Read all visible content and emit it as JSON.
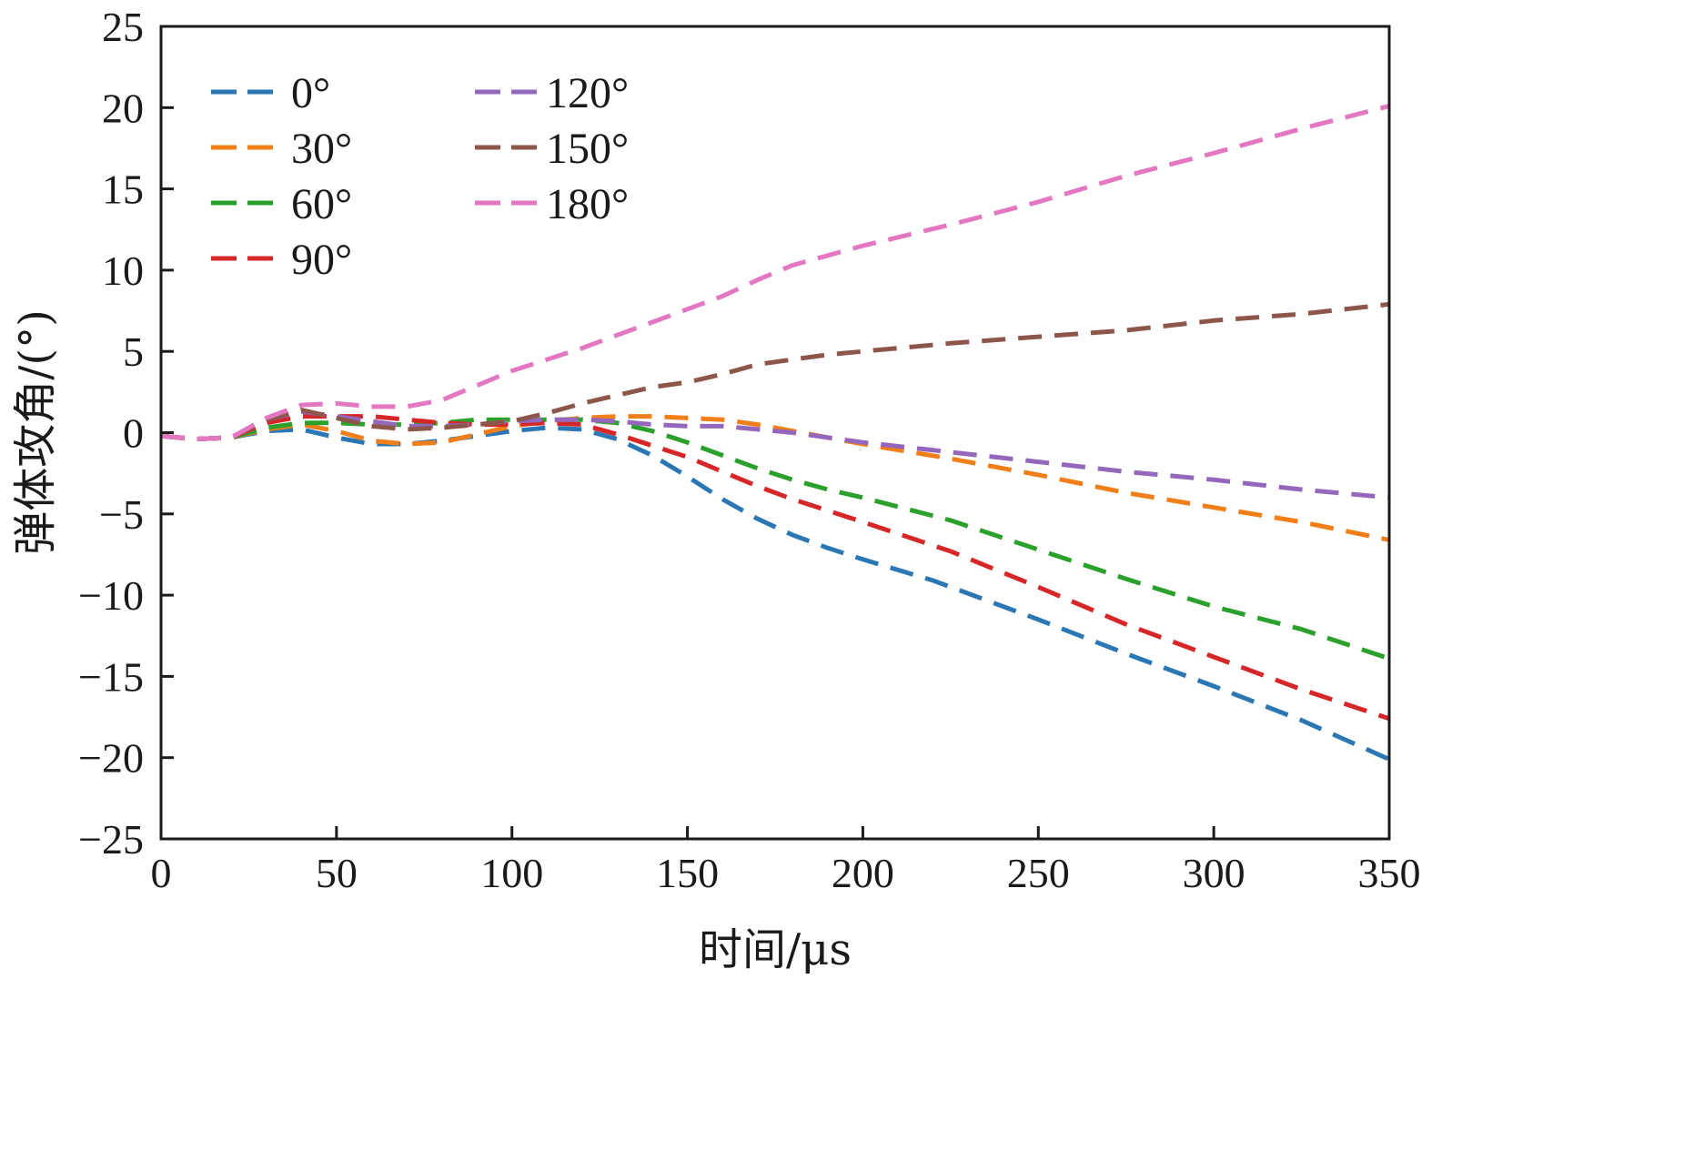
{
  "chart_data": {
    "type": "line",
    "title": "",
    "xlabel": "时间/μs",
    "ylabel": "弹体攻角/(°)",
    "xlim": [
      0,
      350
    ],
    "ylim": [
      -25,
      25
    ],
    "xticks": [
      0,
      50,
      100,
      150,
      200,
      250,
      300,
      350
    ],
    "yticks": [
      -25,
      -20,
      -15,
      -10,
      -5,
      0,
      5,
      10,
      15,
      20,
      25
    ],
    "xtick_labels": [
      "0",
      "50",
      "100",
      "150",
      "200",
      "250",
      "300",
      "350"
    ],
    "ytick_labels": [
      "−25",
      "−20",
      "−15",
      "−10",
      "−5",
      "0",
      "5",
      "10",
      "15",
      "20",
      "25"
    ],
    "grid": false,
    "legend_position": "top-left",
    "line_style": "dashed",
    "series": [
      {
        "name": "0°",
        "color": "#2a77b4",
        "points": [
          [
            0,
            -0.2
          ],
          [
            10,
            -0.4
          ],
          [
            20,
            -0.3
          ],
          [
            30,
            0.1
          ],
          [
            40,
            0.2
          ],
          [
            50,
            -0.3
          ],
          [
            60,
            -0.7
          ],
          [
            70,
            -0.7
          ],
          [
            80,
            -0.5
          ],
          [
            90,
            -0.2
          ],
          [
            100,
            0.1
          ],
          [
            110,
            0.3
          ],
          [
            120,
            0.2
          ],
          [
            130,
            -0.4
          ],
          [
            140,
            -1.4
          ],
          [
            150,
            -2.7
          ],
          [
            160,
            -4.1
          ],
          [
            170,
            -5.3
          ],
          [
            180,
            -6.3
          ],
          [
            190,
            -7.1
          ],
          [
            200,
            -7.8
          ],
          [
            220,
            -9.1
          ],
          [
            250,
            -11.5
          ],
          [
            275,
            -13.6
          ],
          [
            300,
            -15.6
          ],
          [
            325,
            -17.7
          ],
          [
            350,
            -20.1
          ]
        ]
      },
      {
        "name": "30°",
        "color": "#f07f1a",
        "points": [
          [
            0,
            -0.2
          ],
          [
            10,
            -0.4
          ],
          [
            20,
            -0.3
          ],
          [
            30,
            0.2
          ],
          [
            40,
            0.5
          ],
          [
            50,
            0.1
          ],
          [
            60,
            -0.5
          ],
          [
            70,
            -0.7
          ],
          [
            80,
            -0.6
          ],
          [
            90,
            -0.1
          ],
          [
            100,
            0.4
          ],
          [
            110,
            0.7
          ],
          [
            120,
            0.9
          ],
          [
            130,
            1.0
          ],
          [
            140,
            1.0
          ],
          [
            150,
            0.9
          ],
          [
            160,
            0.8
          ],
          [
            170,
            0.5
          ],
          [
            180,
            0.1
          ],
          [
            190,
            -0.3
          ],
          [
            200,
            -0.7
          ],
          [
            225,
            -1.6
          ],
          [
            250,
            -2.6
          ],
          [
            275,
            -3.7
          ],
          [
            300,
            -4.6
          ],
          [
            325,
            -5.5
          ],
          [
            350,
            -6.6
          ]
        ]
      },
      {
        "name": "60°",
        "color": "#2ca02c",
        "points": [
          [
            0,
            -0.2
          ],
          [
            10,
            -0.4
          ],
          [
            20,
            -0.3
          ],
          [
            30,
            0.3
          ],
          [
            40,
            0.6
          ],
          [
            50,
            0.6
          ],
          [
            60,
            0.5
          ],
          [
            70,
            0.5
          ],
          [
            80,
            0.6
          ],
          [
            90,
            0.8
          ],
          [
            100,
            0.8
          ],
          [
            110,
            0.8
          ],
          [
            120,
            0.8
          ],
          [
            130,
            0.6
          ],
          [
            140,
            0.1
          ],
          [
            150,
            -0.6
          ],
          [
            160,
            -1.4
          ],
          [
            170,
            -2.2
          ],
          [
            180,
            -2.9
          ],
          [
            190,
            -3.5
          ],
          [
            200,
            -4.0
          ],
          [
            225,
            -5.4
          ],
          [
            250,
            -7.2
          ],
          [
            275,
            -9.0
          ],
          [
            300,
            -10.7
          ],
          [
            325,
            -12.1
          ],
          [
            350,
            -13.9
          ]
        ]
      },
      {
        "name": "90°",
        "color": "#d62728",
        "points": [
          [
            0,
            -0.2
          ],
          [
            10,
            -0.4
          ],
          [
            20,
            -0.3
          ],
          [
            30,
            0.6
          ],
          [
            40,
            1.0
          ],
          [
            50,
            1.0
          ],
          [
            60,
            1.0
          ],
          [
            70,
            0.8
          ],
          [
            80,
            0.6
          ],
          [
            90,
            0.5
          ],
          [
            100,
            0.5
          ],
          [
            110,
            0.6
          ],
          [
            120,
            0.5
          ],
          [
            130,
            -0.1
          ],
          [
            140,
            -0.8
          ],
          [
            150,
            -1.5
          ],
          [
            160,
            -2.4
          ],
          [
            170,
            -3.3
          ],
          [
            180,
            -4.1
          ],
          [
            190,
            -4.8
          ],
          [
            200,
            -5.5
          ],
          [
            225,
            -7.3
          ],
          [
            250,
            -9.5
          ],
          [
            275,
            -11.8
          ],
          [
            300,
            -13.8
          ],
          [
            325,
            -15.8
          ],
          [
            350,
            -17.6
          ]
        ]
      },
      {
        "name": "120°",
        "color": "#9467bd",
        "points": [
          [
            0,
            -0.2
          ],
          [
            10,
            -0.4
          ],
          [
            20,
            -0.3
          ],
          [
            30,
            0.8
          ],
          [
            40,
            1.3
          ],
          [
            50,
            1.0
          ],
          [
            60,
            0.7
          ],
          [
            70,
            0.4
          ],
          [
            80,
            0.4
          ],
          [
            90,
            0.5
          ],
          [
            100,
            0.7
          ],
          [
            110,
            0.8
          ],
          [
            120,
            0.8
          ],
          [
            130,
            0.7
          ],
          [
            140,
            0.5
          ],
          [
            150,
            0.4
          ],
          [
            160,
            0.4
          ],
          [
            170,
            0.2
          ],
          [
            180,
            0.0
          ],
          [
            190,
            -0.3
          ],
          [
            200,
            -0.6
          ],
          [
            225,
            -1.2
          ],
          [
            250,
            -1.8
          ],
          [
            275,
            -2.4
          ],
          [
            300,
            -2.9
          ],
          [
            325,
            -3.5
          ],
          [
            350,
            -4.0
          ]
        ]
      },
      {
        "name": "150°",
        "color": "#8c564b",
        "points": [
          [
            0,
            -0.2
          ],
          [
            10,
            -0.4
          ],
          [
            20,
            -0.3
          ],
          [
            30,
            0.8
          ],
          [
            40,
            1.4
          ],
          [
            50,
            0.9
          ],
          [
            60,
            0.4
          ],
          [
            70,
            0.2
          ],
          [
            80,
            0.3
          ],
          [
            90,
            0.5
          ],
          [
            100,
            0.7
          ],
          [
            110,
            1.2
          ],
          [
            120,
            1.8
          ],
          [
            130,
            2.3
          ],
          [
            140,
            2.8
          ],
          [
            150,
            3.1
          ],
          [
            160,
            3.6
          ],
          [
            170,
            4.2
          ],
          [
            180,
            4.5
          ],
          [
            190,
            4.8
          ],
          [
            200,
            5.0
          ],
          [
            225,
            5.5
          ],
          [
            250,
            5.9
          ],
          [
            275,
            6.3
          ],
          [
            300,
            6.9
          ],
          [
            325,
            7.3
          ],
          [
            350,
            7.9
          ]
        ]
      },
      {
        "name": "180°",
        "color": "#e377c2",
        "points": [
          [
            0,
            -0.2
          ],
          [
            10,
            -0.4
          ],
          [
            20,
            -0.3
          ],
          [
            30,
            0.9
          ],
          [
            40,
            1.7
          ],
          [
            50,
            1.8
          ],
          [
            60,
            1.6
          ],
          [
            70,
            1.6
          ],
          [
            80,
            2.0
          ],
          [
            90,
            2.9
          ],
          [
            100,
            3.8
          ],
          [
            110,
            4.5
          ],
          [
            120,
            5.2
          ],
          [
            130,
            6.0
          ],
          [
            140,
            6.8
          ],
          [
            150,
            7.6
          ],
          [
            160,
            8.4
          ],
          [
            170,
            9.4
          ],
          [
            180,
            10.3
          ],
          [
            190,
            10.9
          ],
          [
            200,
            11.5
          ],
          [
            225,
            12.8
          ],
          [
            250,
            14.2
          ],
          [
            275,
            15.8
          ],
          [
            300,
            17.2
          ],
          [
            325,
            18.7
          ],
          [
            350,
            20.1
          ]
        ]
      }
    ]
  }
}
